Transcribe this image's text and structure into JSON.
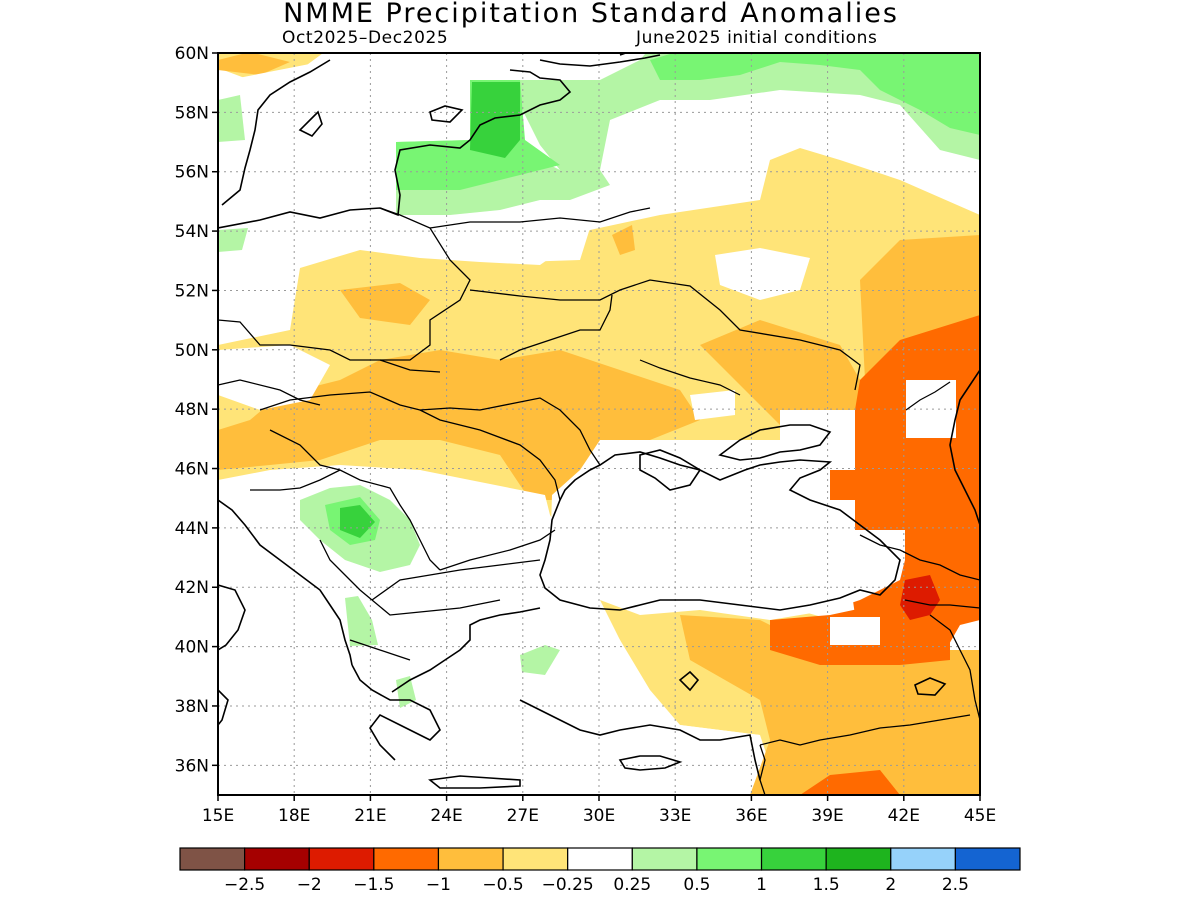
{
  "title": "NMME Precipitation Standard Anomalies",
  "subtitle_left": "Oct2025–Dec2025",
  "subtitle_right": "June2025 initial conditions",
  "map": {
    "lon_range": [
      15,
      45
    ],
    "lat_range": [
      35,
      60
    ],
    "lon_ticks": [
      "15E",
      "18E",
      "21E",
      "24E",
      "27E",
      "30E",
      "33E",
      "36E",
      "39E",
      "42E",
      "45E"
    ],
    "lat_ticks": [
      "60N",
      "58N",
      "56N",
      "54N",
      "52N",
      "50N",
      "48N",
      "46N",
      "44N",
      "42N",
      "40N",
      "38N",
      "36N"
    ],
    "gridlines": "dotted"
  },
  "colorbar": {
    "colors": [
      "#7f5346",
      "#a50000",
      "#dd1b00",
      "#ff6a00",
      "#ffbe3c",
      "#ffe478",
      "#ffffff",
      "#b4f5a5",
      "#78f573",
      "#37d23c",
      "#1eb41e",
      "#96d2fa",
      "#1464d2"
    ],
    "labels": [
      "−2.5",
      "−2",
      "−1.5",
      "−1",
      "−0.5",
      "−0.25",
      "0.25",
      "0.5",
      "1",
      "1.5",
      "2",
      "2.5"
    ]
  }
}
